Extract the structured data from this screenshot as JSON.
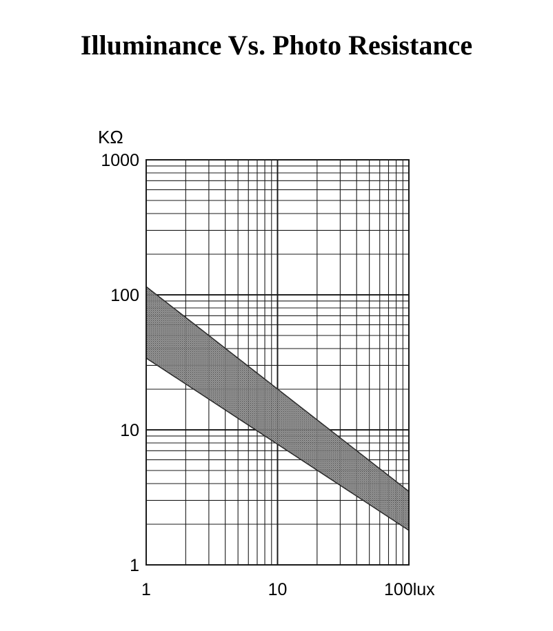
{
  "chart_data": {
    "type": "area",
    "title": "Illuminance Vs. Photo Resistance",
    "xlabel": "",
    "ylabel": "",
    "x_unit": "lux",
    "y_unit": "KΩ",
    "x_scale": "log",
    "y_scale": "log",
    "xlim": [
      1,
      100
    ],
    "ylim": [
      1,
      1000
    ],
    "grid": true,
    "x_ticks": [
      1,
      10,
      100
    ],
    "x_tick_labels": [
      "1",
      "10",
      "100lux"
    ],
    "y_ticks": [
      1,
      10,
      100,
      1000
    ],
    "y_tick_labels": [
      "1",
      "10",
      "100",
      "1000"
    ],
    "band": {
      "x": [
        1,
        100
      ],
      "upper": [
        115,
        3.5
      ],
      "lower": [
        34,
        1.8
      ]
    },
    "colors": {
      "band_fill": "#7a7a7a",
      "band_edge": "#2a2a2a",
      "grid": "#1a1a1a"
    }
  }
}
